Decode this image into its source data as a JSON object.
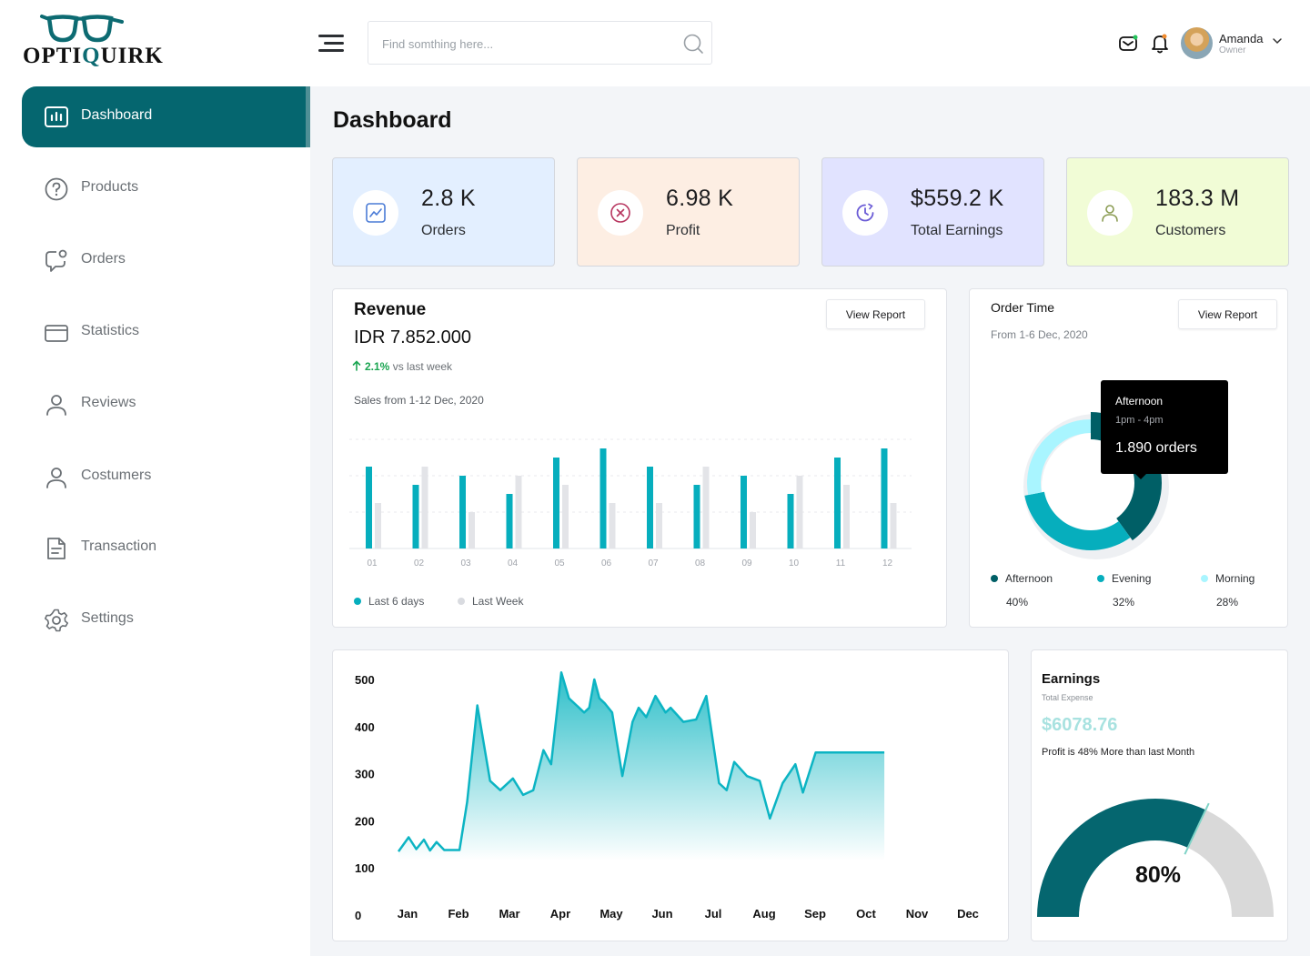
{
  "app": {
    "logo_text_start": "OPTI",
    "logo_text_q": "Q",
    "logo_text_end": "UIRK"
  },
  "header": {
    "search_placeholder": "Find somthing here...",
    "user": {
      "name": "Amanda",
      "role": "Owner"
    }
  },
  "sidebar": {
    "items": [
      {
        "label": "Dashboard",
        "icon": "chart-bar-icon",
        "active": true
      },
      {
        "label": "Products",
        "icon": "question-circle-icon"
      },
      {
        "label": "Orders",
        "icon": "chat-bubble-icon"
      },
      {
        "label": "Statistics",
        "icon": "credit-card-icon"
      },
      {
        "label": "Reviews",
        "icon": "user-icon"
      },
      {
        "label": "Costumers",
        "icon": "user-icon"
      },
      {
        "label": "Transaction",
        "icon": "document-icon"
      },
      {
        "label": "Settings",
        "icon": "gear-icon"
      }
    ]
  },
  "page": {
    "title": "Dashboard"
  },
  "stats": [
    {
      "value": "2.8 K",
      "label": "Orders",
      "bg": "#e3efff",
      "icon": "trend-chart-icon",
      "accent": "#4a7bd6"
    },
    {
      "value": "6.98 K",
      "label": "Profit",
      "bg": "#fdeee3",
      "icon": "close-circle-icon",
      "accent": "#b7355f"
    },
    {
      "value": "$559.2 K",
      "label": "Total Earnings",
      "bg": "#e1e3ff",
      "icon": "clock-icon",
      "accent": "#6a5bd6"
    },
    {
      "value": "183.3 M",
      "label": "Customers",
      "bg": "#f1fcd6",
      "icon": "user-icon",
      "accent": "#8a9b52"
    }
  ],
  "revenue": {
    "title": "Revenue",
    "amount": "IDR 7.852.000",
    "growth_pct": "2.1%",
    "growth_text": "vs last week",
    "subtitle": "Sales from 1-12 Dec, 2020",
    "button": "View Report",
    "legend": [
      {
        "label": "Last 6 days",
        "color": "#06aebd"
      },
      {
        "label": "Last Week",
        "color": "#d9dbe0"
      }
    ]
  },
  "order_time": {
    "title": "Order Time",
    "subtitle": "From 1-6 Dec, 2020",
    "button": "View Report",
    "tooltip": {
      "title": "Afternoon",
      "time": "1pm - 4pm",
      "orders": "1.890 orders"
    },
    "segments": [
      {
        "label": "Afternoon",
        "pct": "40%",
        "value": 40,
        "color": "#005f66"
      },
      {
        "label": "Evening",
        "pct": "32%",
        "value": 32,
        "color": "#06aebd"
      },
      {
        "label": "Morning",
        "pct": "28%",
        "value": 28,
        "color": "#a9f5ff"
      }
    ]
  },
  "earnings": {
    "title": "Earnings",
    "subtitle": "Total Expense",
    "amount": "$6078.76",
    "note": "Profit is 48% More than last Month",
    "gauge_pct": "80%",
    "gauge_value": 0.8
  },
  "chart_data": [
    {
      "type": "bar",
      "categories": [
        "01",
        "02",
        "03",
        "04",
        "05",
        "06",
        "07",
        "08",
        "09",
        "10",
        "11",
        "12"
      ],
      "series": [
        {
          "name": "Last 6 days",
          "values": [
            9,
            7,
            8,
            6,
            10,
            11,
            9,
            7,
            8,
            6,
            10,
            11
          ]
        },
        {
          "name": "Last Week",
          "values": [
            5,
            9,
            4,
            8,
            7,
            5,
            5,
            9,
            4,
            8,
            7,
            5
          ]
        }
      ],
      "ylim": [
        0,
        12
      ],
      "grid": true,
      "legend": "bottom-left"
    },
    {
      "type": "pie",
      "categories": [
        "Afternoon",
        "Evening",
        "Morning"
      ],
      "values": [
        40,
        32,
        28
      ]
    },
    {
      "type": "area",
      "x": [
        0.0,
        0.2,
        0.35,
        0.5,
        0.62,
        0.75,
        0.9,
        1.05,
        1.2,
        1.35,
        1.55,
        1.8,
        2.0,
        2.25,
        2.45,
        2.65,
        2.85,
        3.0,
        3.2,
        3.35,
        3.5,
        3.65,
        3.75,
        3.85,
        3.95,
        4.05,
        4.2,
        4.4,
        4.6,
        4.72,
        4.87,
        5.05,
        5.25,
        5.35,
        5.6,
        5.85,
        6.05,
        6.3,
        6.45,
        6.6,
        6.85,
        7.1,
        7.3,
        7.55,
        7.8,
        7.95,
        8.2,
        8.45,
        8.65,
        8.8,
        9.0,
        9.2,
        9.35,
        9.55
      ],
      "values": [
        135,
        165,
        140,
        160,
        137,
        155,
        138,
        138,
        138,
        240,
        445,
        285,
        265,
        290,
        255,
        265,
        350,
        320,
        515,
        460,
        445,
        430,
        440,
        500,
        460,
        450,
        430,
        295,
        410,
        440,
        420,
        465,
        430,
        440,
        410,
        415,
        465,
        280,
        265,
        325,
        295,
        285,
        205,
        280,
        320,
        260,
        345,
        345,
        345,
        345,
        345,
        345,
        345,
        345
      ],
      "categories": [
        "Jan",
        "Feb",
        "Mar",
        "Apr",
        "May",
        "Jun",
        "Jul",
        "Aug",
        "Sep",
        "Oct",
        "Nov",
        "Dec"
      ],
      "y_ticks": [
        0,
        100,
        200,
        300,
        400,
        500
      ],
      "ylim": [
        0,
        500
      ],
      "grid": false
    },
    {
      "type": "gauge",
      "value": 0.8,
      "label": "80%"
    }
  ]
}
